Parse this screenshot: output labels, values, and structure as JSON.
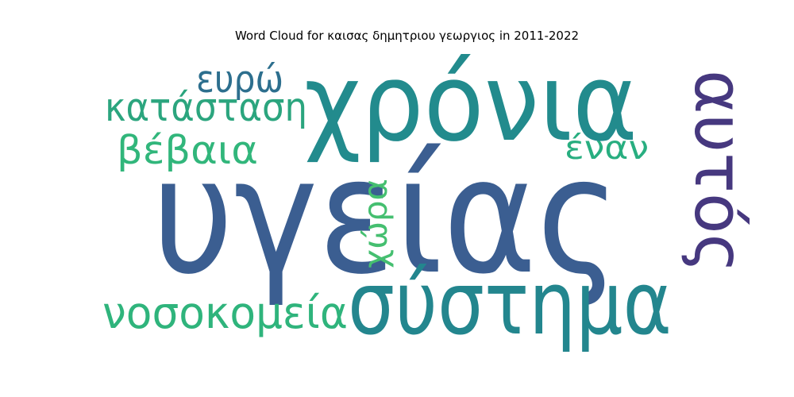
{
  "chart_data": {
    "type": "wordcloud",
    "title": "Word Cloud for καισας δημητριου γεωργιος in 2011-2022",
    "words": [
      {
        "text": "υγείας",
        "color": "#3b5e91"
      },
      {
        "text": "χρόνια",
        "color": "#228b8d"
      },
      {
        "text": "σύστημα",
        "color": "#23868e"
      },
      {
        "text": "αυτός",
        "color": "#46387f"
      },
      {
        "text": "νοσοκομεία",
        "color": "#2fb47c"
      },
      {
        "text": "κατάσταση",
        "color": "#2ba57e"
      },
      {
        "text": "βέβαια",
        "color": "#31b67b"
      },
      {
        "text": "ευρώ",
        "color": "#2d6f8e"
      },
      {
        "text": "έναν",
        "color": "#28ae80"
      },
      {
        "text": "χώρα",
        "color": "#45bf70"
      }
    ]
  }
}
